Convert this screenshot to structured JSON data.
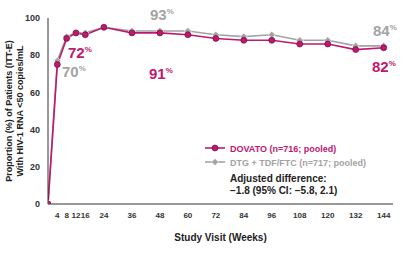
{
  "chart_data": {
    "type": "line",
    "x_label": "Study Visit (Weeks)",
    "y_label": "Proportion (%) of Patients (ITT-E)\nWith HIV-1 RNA <50 copies/mL",
    "x": [
      0,
      4,
      8,
      12,
      16,
      24,
      36,
      48,
      60,
      72,
      84,
      96,
      108,
      120,
      132,
      144
    ],
    "series": [
      {
        "name": "DOVATO (n=716; pooled)",
        "color": "#c0186e",
        "marker": "circle",
        "values": [
          0,
          75,
          89,
          92,
          91,
          95,
          92,
          92,
          91,
          89,
          88,
          88,
          86,
          86,
          83,
          84
        ],
        "annotations": [
          "72%",
          "91%",
          "82%"
        ]
      },
      {
        "name": "DTG + TDF/FTC (n=717; pooled)",
        "color": "#a3a3a3",
        "marker": "diamond",
        "values": [
          0,
          77,
          90,
          92,
          92,
          95,
          93,
          93,
          93,
          91,
          90,
          91,
          88,
          88,
          85,
          85
        ],
        "annotations": [
          "70%",
          "93%",
          "84%"
        ]
      }
    ],
    "annotations": [
      "Adjusted difference:",
      "−1.8 (95% CI: −5.8, 2.1)"
    ],
    "xlim": [
      0,
      148
    ],
    "xticks": [
      4,
      8,
      12,
      16,
      24,
      36,
      48,
      60,
      72,
      84,
      96,
      108,
      120,
      132,
      144
    ],
    "ylim": [
      0,
      100
    ],
    "yticks": [
      0,
      20,
      40,
      60,
      80,
      100
    ],
    "grid": false,
    "legend": "right"
  }
}
